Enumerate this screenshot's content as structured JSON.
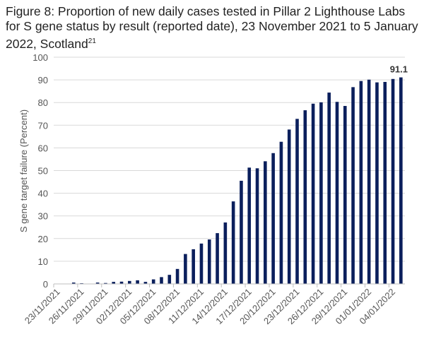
{
  "chart_data": {
    "type": "bar",
    "title": "Figure 8: Proportion of new daily cases tested in Pillar 2 Lighthouse Labs for S gene status by result (reported date), 23 November 2021 to 5 January 2022, Scotland",
    "title_superscript": "21",
    "xlabel": "",
    "ylabel": "S gene target failure (Percent)",
    "ylim": [
      0,
      100
    ],
    "yticks": [
      0,
      10,
      20,
      30,
      40,
      50,
      60,
      70,
      80,
      90,
      100
    ],
    "grid": true,
    "bar_color": "#0b1f5c",
    "categories": [
      "23/11/2021",
      "24/11/2021",
      "25/11/2021",
      "26/11/2021",
      "27/11/2021",
      "28/11/2021",
      "29/11/2021",
      "30/11/2021",
      "01/12/2021",
      "02/12/2021",
      "03/12/2021",
      "04/12/2021",
      "05/12/2021",
      "06/12/2021",
      "07/12/2021",
      "08/12/2021",
      "09/12/2021",
      "10/12/2021",
      "11/12/2021",
      "12/12/2021",
      "13/12/2021",
      "14/12/2021",
      "15/12/2021",
      "16/12/2021",
      "17/12/2021",
      "18/12/2021",
      "19/12/2021",
      "20/12/2021",
      "21/12/2021",
      "22/12/2021",
      "23/12/2021",
      "24/12/2021",
      "25/12/2021",
      "26/12/2021",
      "27/12/2021",
      "28/12/2021",
      "29/12/2021",
      "30/12/2021",
      "31/12/2021",
      "01/01/2022",
      "02/01/2022",
      "03/01/2022",
      "04/01/2022",
      "05/01/2022"
    ],
    "xtick_labels": [
      "23/11/2021",
      "26/11/2021",
      "29/11/2021",
      "02/12/2021",
      "05/12/2021",
      "08/12/2021",
      "11/12/2021",
      "14/12/2021",
      "17/12/2021",
      "20/12/2021",
      "23/12/2021",
      "26/12/2021",
      "29/12/2021",
      "01/01/2022",
      "04/01/2022"
    ],
    "values": [
      0,
      0,
      0.6,
      0.3,
      0,
      0.6,
      0.4,
      0.9,
      1.0,
      1.3,
      1.6,
      0.9,
      2.0,
      3.0,
      4.0,
      6.6,
      13.2,
      15.3,
      17.8,
      19.6,
      22.4,
      27.1,
      36.4,
      45.5,
      51.3,
      51.0,
      54.1,
      57.7,
      62.7,
      68.1,
      72.8,
      76.6,
      79.5,
      80.1,
      84.4,
      80.3,
      78.5,
      86.8,
      89.5,
      90.1,
      88.9,
      89.1,
      90.4,
      91.1
    ],
    "data_labels": [
      {
        "category": "05/01/2022",
        "text": "91.1"
      }
    ]
  }
}
